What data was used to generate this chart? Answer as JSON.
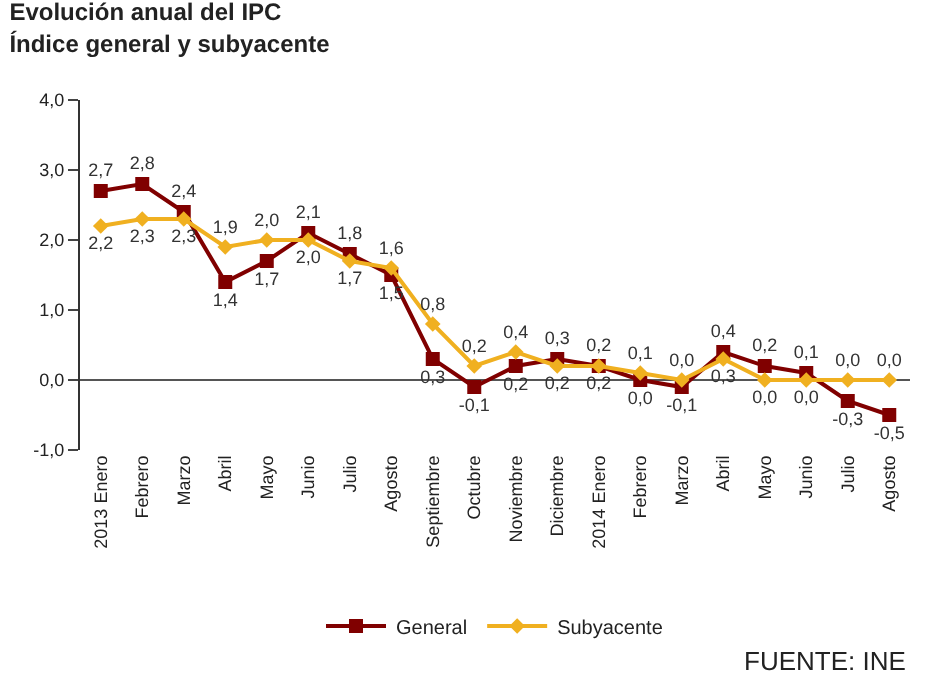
{
  "chart_data": {
    "type": "line",
    "title": "Evolución anual del IPC",
    "subtitle": "Índice general y subyacente",
    "categories": [
      "2013 Enero",
      "Febrero",
      "Marzo",
      "Abril",
      "Mayo",
      "Junio",
      "Julio",
      "Agosto",
      "Septiembre",
      "Octubre",
      "Noviembre",
      "Diciembre",
      "2014 Enero",
      "Febrero",
      "Marzo",
      "Abril",
      "Mayo",
      "Junio",
      "Julio",
      "Agosto"
    ],
    "series": [
      {
        "name": "General",
        "color": "#800000",
        "marker": "square",
        "values": [
          2.7,
          2.8,
          2.4,
          1.4,
          1.7,
          2.1,
          1.8,
          1.5,
          0.3,
          -0.1,
          0.2,
          0.3,
          0.2,
          0.0,
          -0.1,
          0.4,
          0.2,
          0.1,
          -0.3,
          -0.5
        ],
        "value_labels": [
          "2,7",
          "2,8",
          "2,4",
          "1,4",
          "1,7",
          "2,1",
          "1,8",
          "1,5",
          "0,3",
          "-0,1",
          "0,2",
          "0,3",
          "0,2",
          "0,0",
          "-0,1",
          "0,4",
          "0,2",
          "0,1",
          "-0,3",
          "-0,5"
        ]
      },
      {
        "name": "Subyacente",
        "color": "#f0b020",
        "marker": "diamond",
        "values": [
          2.2,
          2.3,
          2.3,
          1.9,
          2.0,
          2.0,
          1.7,
          1.6,
          0.8,
          0.2,
          0.4,
          0.2,
          0.2,
          0.1,
          0.0,
          0.3,
          0.0,
          0.0,
          0.0,
          0.0
        ],
        "value_labels": [
          "2,2",
          "2,3",
          "2,3",
          "1,9",
          "2,0",
          "2,0",
          "1,7",
          "1,6",
          "0,8",
          "0,2",
          "0,4",
          "0,2",
          "0,2",
          "0,1",
          "0,0",
          "0,3",
          "0,0",
          "0,0",
          "0,0",
          "0,0"
        ]
      }
    ],
    "ylim": [
      -1.0,
      4.0
    ],
    "yticks": [
      {
        "value": -1.0,
        "label": "-1,0"
      },
      {
        "value": 0.0,
        "label": "0,0"
      },
      {
        "value": 1.0,
        "label": "1,0"
      },
      {
        "value": 2.0,
        "label": "2,0"
      },
      {
        "value": 3.0,
        "label": "3,0"
      },
      {
        "value": 4.0,
        "label": "4,0"
      }
    ],
    "grid": false,
    "ref_lines": [
      {
        "axis": "y",
        "value": 0.0,
        "color": "#555555"
      }
    ],
    "legend": "bottom",
    "line_style": "solid",
    "annotations": [
      "FUENTE: INE"
    ]
  }
}
